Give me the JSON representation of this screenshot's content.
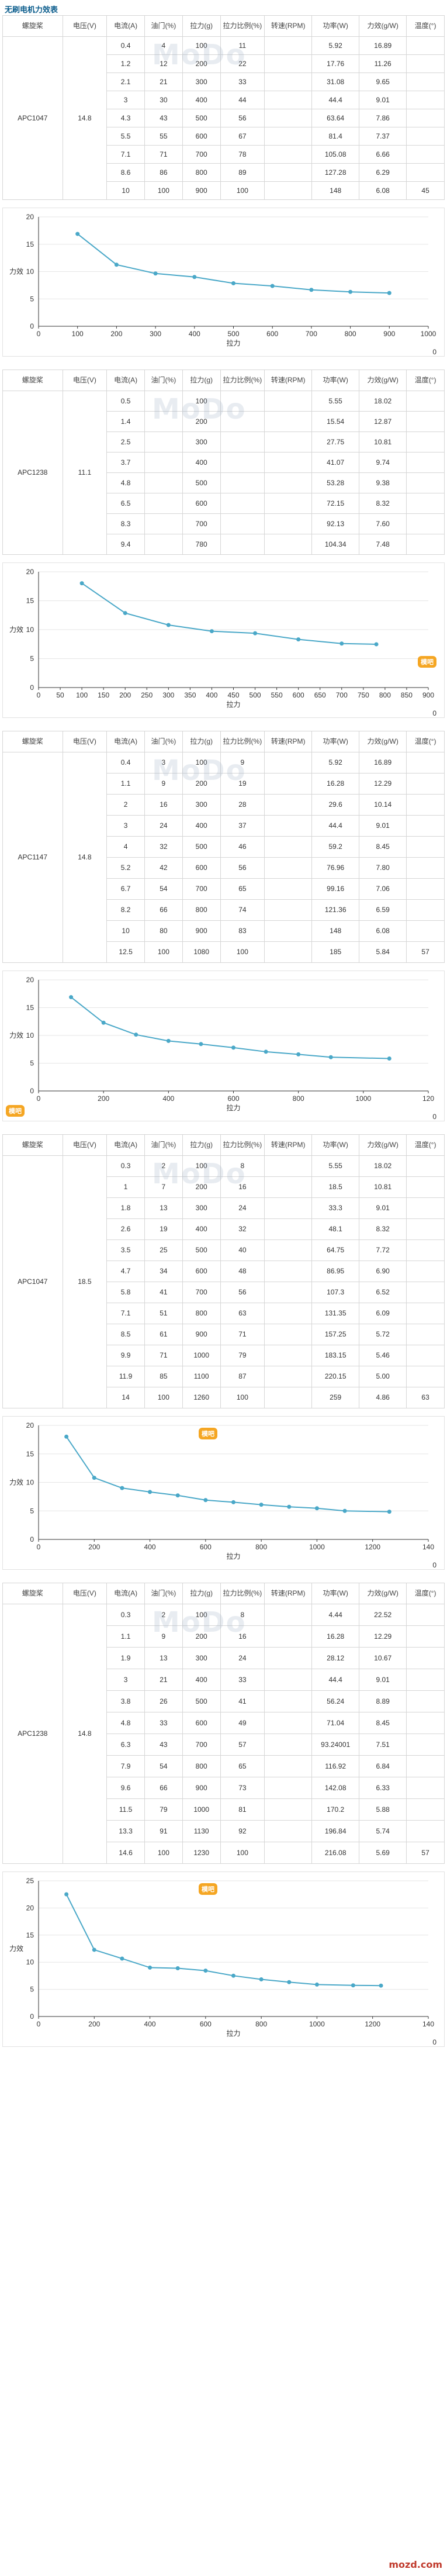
{
  "page": {
    "title": "无刷电机力效表",
    "badge_text": "模吧",
    "footer_logo": "mozd.com"
  },
  "headers": [
    "螺旋桨",
    "电压(V)",
    "电流(A)",
    "油门(%)",
    "拉力(g)",
    "拉力比例(%)",
    "转速(RPM)",
    "功率(W)",
    "力效(g/W)",
    "温度(°)"
  ],
  "sections": [
    {
      "prop": "APC1047",
      "voltage": "14.8",
      "temp": "45",
      "rows": [
        [
          "0.4",
          "4",
          "100",
          "11",
          "",
          "5.92",
          "16.89"
        ],
        [
          "1.2",
          "12",
          "200",
          "22",
          "",
          "17.76",
          "11.26"
        ],
        [
          "2.1",
          "21",
          "300",
          "33",
          "",
          "31.08",
          "9.65"
        ],
        [
          "3",
          "30",
          "400",
          "44",
          "",
          "44.4",
          "9.01"
        ],
        [
          "4.3",
          "43",
          "500",
          "56",
          "",
          "63.64",
          "7.86"
        ],
        [
          "5.5",
          "55",
          "600",
          "67",
          "",
          "81.4",
          "7.37"
        ],
        [
          "7.1",
          "71",
          "700",
          "78",
          "",
          "105.08",
          "6.66"
        ],
        [
          "8.6",
          "86",
          "800",
          "89",
          "",
          "127.28",
          "6.29"
        ],
        [
          "10",
          "100",
          "900",
          "100",
          "",
          "148",
          "6.08"
        ]
      ],
      "chart": {
        "type": "line",
        "x": [
          100,
          200,
          300,
          400,
          500,
          600,
          700,
          800,
          900
        ],
        "y": [
          16.89,
          11.26,
          9.65,
          9.01,
          7.86,
          7.37,
          6.66,
          6.29,
          6.08
        ],
        "xticks": [
          "0",
          "100",
          "200",
          "300",
          "400",
          "500",
          "600",
          "700",
          "800",
          "900",
          "1000"
        ],
        "yticks": [
          "0",
          "5",
          "10",
          "15",
          "20"
        ],
        "xlim": [
          0,
          1000
        ],
        "ylim": [
          0,
          20
        ],
        "xlabel": "拉力",
        "ylabel": "力效",
        "zero_label": "0"
      }
    },
    {
      "prop": "APC1238",
      "voltage": "11.1",
      "temp": "",
      "rows": [
        [
          "0.5",
          "",
          "100",
          "",
          "",
          "5.55",
          "18.02"
        ],
        [
          "1.4",
          "",
          "200",
          "",
          "",
          "15.54",
          "12.87"
        ],
        [
          "2.5",
          "",
          "300",
          "",
          "",
          "27.75",
          "10.81"
        ],
        [
          "3.7",
          "",
          "400",
          "",
          "",
          "41.07",
          "9.74"
        ],
        [
          "4.8",
          "",
          "500",
          "",
          "",
          "53.28",
          "9.38"
        ],
        [
          "6.5",
          "",
          "600",
          "",
          "",
          "72.15",
          "8.32"
        ],
        [
          "8.3",
          "",
          "700",
          "",
          "",
          "92.13",
          "7.60"
        ],
        [
          "9.4",
          "",
          "780",
          "",
          "",
          "104.34",
          "7.48"
        ]
      ],
      "chart": {
        "type": "line",
        "x": [
          100,
          200,
          300,
          400,
          500,
          600,
          700,
          780
        ],
        "y": [
          18.02,
          12.87,
          10.81,
          9.74,
          9.38,
          8.32,
          7.6,
          7.48
        ],
        "xticks": [
          "0",
          "50",
          "100",
          "150",
          "200",
          "250",
          "300",
          "350",
          "400",
          "450",
          "500",
          "550",
          "600",
          "650",
          "700",
          "750",
          "800",
          "850",
          "900"
        ],
        "yticks": [
          "0",
          "5",
          "10",
          "15",
          "20"
        ],
        "xlim": [
          0,
          900
        ],
        "ylim": [
          0,
          20
        ],
        "xlabel": "拉力",
        "ylabel": "力效",
        "zero_label": "0"
      }
    },
    {
      "prop": "APC1147",
      "voltage": "14.8",
      "temp": "57",
      "rows": [
        [
          "0.4",
          "3",
          "100",
          "9",
          "",
          "5.92",
          "16.89"
        ],
        [
          "1.1",
          "9",
          "200",
          "19",
          "",
          "16.28",
          "12.29"
        ],
        [
          "2",
          "16",
          "300",
          "28",
          "",
          "29.6",
          "10.14"
        ],
        [
          "3",
          "24",
          "400",
          "37",
          "",
          "44.4",
          "9.01"
        ],
        [
          "4",
          "32",
          "500",
          "46",
          "",
          "59.2",
          "8.45"
        ],
        [
          "5.2",
          "42",
          "600",
          "56",
          "",
          "76.96",
          "7.80"
        ],
        [
          "6.7",
          "54",
          "700",
          "65",
          "",
          "99.16",
          "7.06"
        ],
        [
          "8.2",
          "66",
          "800",
          "74",
          "",
          "121.36",
          "6.59"
        ],
        [
          "10",
          "80",
          "900",
          "83",
          "",
          "148",
          "6.08"
        ],
        [
          "12.5",
          "100",
          "1080",
          "100",
          "",
          "185",
          "5.84"
        ]
      ],
      "chart": {
        "type": "line",
        "x": [
          100,
          200,
          300,
          400,
          500,
          600,
          700,
          800,
          900,
          1080
        ],
        "y": [
          16.89,
          12.29,
          10.14,
          9.01,
          8.45,
          7.8,
          7.06,
          6.59,
          6.08,
          5.84
        ],
        "xticks": [
          "0",
          "200",
          "400",
          "600",
          "800",
          "1000",
          "120"
        ],
        "yticks": [
          "0",
          "5",
          "10",
          "15",
          "20"
        ],
        "xlim": [
          0,
          1200
        ],
        "ylim": [
          0,
          20
        ],
        "xlabel": "拉力",
        "ylabel": "力效",
        "zero_label": "0"
      }
    },
    {
      "prop": "APC1047",
      "voltage": "18.5",
      "temp": "63",
      "rows": [
        [
          "0.3",
          "2",
          "100",
          "8",
          "",
          "5.55",
          "18.02"
        ],
        [
          "1",
          "7",
          "200",
          "16",
          "",
          "18.5",
          "10.81"
        ],
        [
          "1.8",
          "13",
          "300",
          "24",
          "",
          "33.3",
          "9.01"
        ],
        [
          "2.6",
          "19",
          "400",
          "32",
          "",
          "48.1",
          "8.32"
        ],
        [
          "3.5",
          "25",
          "500",
          "40",
          "",
          "64.75",
          "7.72"
        ],
        [
          "4.7",
          "34",
          "600",
          "48",
          "",
          "86.95",
          "6.90"
        ],
        [
          "5.8",
          "41",
          "700",
          "56",
          "",
          "107.3",
          "6.52"
        ],
        [
          "7.1",
          "51",
          "800",
          "63",
          "",
          "131.35",
          "6.09"
        ],
        [
          "8.5",
          "61",
          "900",
          "71",
          "",
          "157.25",
          "5.72"
        ],
        [
          "9.9",
          "71",
          "1000",
          "79",
          "",
          "183.15",
          "5.46"
        ],
        [
          "11.9",
          "85",
          "1100",
          "87",
          "",
          "220.15",
          "5.00"
        ],
        [
          "14",
          "100",
          "1260",
          "100",
          "",
          "259",
          "4.86"
        ]
      ],
      "chart": {
        "type": "line",
        "x": [
          100,
          200,
          300,
          400,
          500,
          600,
          700,
          800,
          900,
          1000,
          1100,
          1260
        ],
        "y": [
          18.02,
          10.81,
          9.01,
          8.32,
          7.72,
          6.9,
          6.52,
          6.09,
          5.72,
          5.46,
          5.0,
          4.86
        ],
        "xticks": [
          "0",
          "200",
          "400",
          "600",
          "800",
          "1000",
          "1200",
          "140"
        ],
        "yticks": [
          "0",
          "5",
          "10",
          "15",
          "20"
        ],
        "xlim": [
          0,
          1400
        ],
        "ylim": [
          0,
          20
        ],
        "xlabel": "拉力",
        "ylabel": "力效",
        "zero_label": "0"
      }
    },
    {
      "prop": "APC1238",
      "voltage": "14.8",
      "temp": "57",
      "rows": [
        [
          "0.3",
          "2",
          "100",
          "8",
          "",
          "4.44",
          "22.52"
        ],
        [
          "1.1",
          "9",
          "200",
          "16",
          "",
          "16.28",
          "12.29"
        ],
        [
          "1.9",
          "13",
          "300",
          "24",
          "",
          "28.12",
          "10.67"
        ],
        [
          "3",
          "21",
          "400",
          "33",
          "",
          "44.4",
          "9.01"
        ],
        [
          "3.8",
          "26",
          "500",
          "41",
          "",
          "56.24",
          "8.89"
        ],
        [
          "4.8",
          "33",
          "600",
          "49",
          "",
          "71.04",
          "8.45"
        ],
        [
          "6.3",
          "43",
          "700",
          "57",
          "",
          "93.24001",
          "7.51"
        ],
        [
          "7.9",
          "54",
          "800",
          "65",
          "",
          "116.92",
          "6.84"
        ],
        [
          "9.6",
          "66",
          "900",
          "73",
          "",
          "142.08",
          "6.33"
        ],
        [
          "11.5",
          "79",
          "1000",
          "81",
          "",
          "170.2",
          "5.88"
        ],
        [
          "13.3",
          "91",
          "1130",
          "92",
          "",
          "196.84",
          "5.74"
        ],
        [
          "14.6",
          "100",
          "1230",
          "100",
          "",
          "216.08",
          "5.69"
        ]
      ],
      "chart": {
        "type": "line",
        "x": [
          100,
          200,
          300,
          400,
          500,
          600,
          700,
          800,
          900,
          1000,
          1130,
          1230
        ],
        "y": [
          22.52,
          12.29,
          10.67,
          9.01,
          8.89,
          8.45,
          7.51,
          6.84,
          6.33,
          5.88,
          5.74,
          5.69
        ],
        "xticks": [
          "0",
          "200",
          "400",
          "600",
          "800",
          "1000",
          "1200",
          "140"
        ],
        "yticks": [
          "0",
          "5",
          "10",
          "15",
          "20",
          "25"
        ],
        "xlim": [
          0,
          1400
        ],
        "ylim": [
          0,
          25
        ],
        "xlabel": "拉力",
        "ylabel": "力效",
        "zero_label": "0"
      }
    }
  ]
}
